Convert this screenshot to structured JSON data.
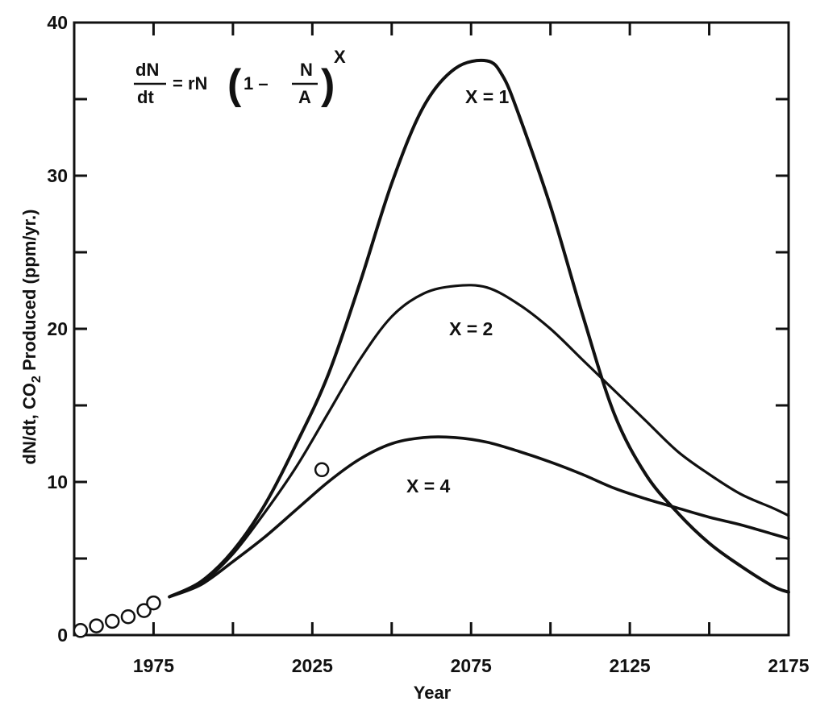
{
  "chart_data": {
    "type": "line",
    "xlabel": "Year",
    "ylabel": "dN/dt, CO",
    "ylabel_sub": "2",
    "ylabel_rest": " Produced (ppm/yr.)",
    "xlim": [
      1950,
      2175
    ],
    "ylim": [
      0,
      40
    ],
    "xticks": [
      "1975",
      "2025",
      "2075",
      "2125",
      "2175"
    ],
    "yticks": [
      "0",
      "10",
      "20",
      "30",
      "40"
    ],
    "grid": false,
    "equation": {
      "lhs_num": "dN",
      "lhs_den": "dt",
      "eq": "= rN",
      "one_minus": "1 –",
      "frac_num": "N",
      "frac_den": "A",
      "exponent": "X"
    },
    "series": [
      {
        "name": "X = 1",
        "x": [
          1980,
          1990,
          2000,
          2010,
          2020,
          2030,
          2040,
          2050,
          2060,
          2070,
          2080,
          2085,
          2090,
          2100,
          2110,
          2120,
          2130,
          2140,
          2150,
          2160,
          2170,
          2175
        ],
        "y": [
          2.5,
          3.5,
          5.5,
          8.5,
          12.5,
          17,
          23,
          29.5,
          34.5,
          37,
          37.5,
          36.5,
          34,
          28,
          21,
          14.5,
          10.5,
          8,
          6,
          4.5,
          3.2,
          2.8
        ]
      },
      {
        "name": "X = 2",
        "x": [
          1980,
          1990,
          2000,
          2010,
          2020,
          2030,
          2040,
          2050,
          2060,
          2070,
          2080,
          2090,
          2100,
          2110,
          2120,
          2130,
          2140,
          2150,
          2160,
          2170,
          2175
        ],
        "y": [
          2.5,
          3.4,
          5.3,
          8,
          11,
          14.5,
          18,
          20.8,
          22.3,
          22.8,
          22.7,
          21.6,
          20,
          18,
          16,
          14,
          12,
          10.5,
          9.2,
          8.3,
          7.8
        ]
      },
      {
        "name": "X = 4",
        "x": [
          1980,
          1990,
          2000,
          2010,
          2020,
          2030,
          2040,
          2050,
          2060,
          2070,
          2080,
          2090,
          2100,
          2110,
          2120,
          2130,
          2140,
          2150,
          2160,
          2170,
          2175
        ],
        "y": [
          2.5,
          3.3,
          4.8,
          6.4,
          8.2,
          10,
          11.5,
          12.5,
          12.9,
          12.9,
          12.6,
          12,
          11.3,
          10.5,
          9.6,
          8.9,
          8.3,
          7.7,
          7.2,
          6.6,
          6.3
        ]
      }
    ],
    "points": {
      "x": [
        1952,
        1957,
        1962,
        1967,
        1972,
        1975,
        2028
      ],
      "y": [
        0.3,
        0.6,
        0.9,
        1.2,
        1.6,
        2.1,
        10.8
      ]
    }
  }
}
